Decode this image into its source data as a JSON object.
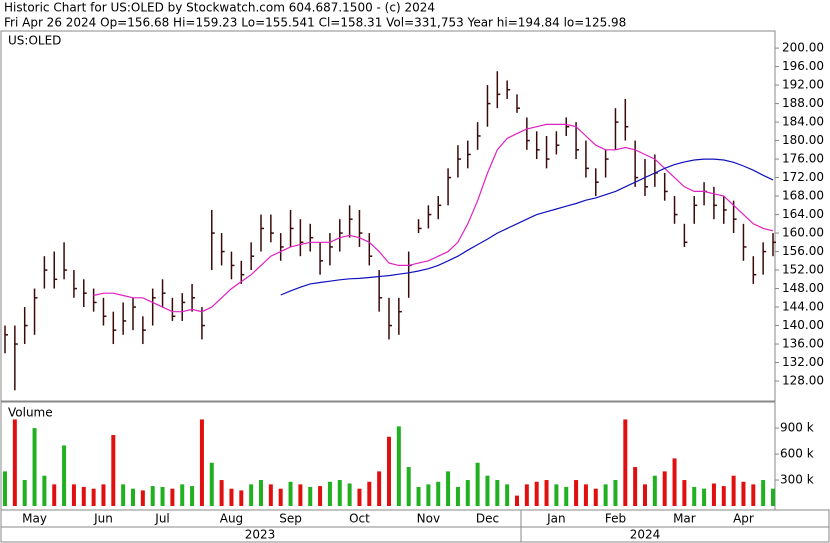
{
  "header": {
    "line1": "Historic Chart for US:OLED by Stockwatch.com 604.687.1500 - (c) 2024",
    "line2": "Fri Apr 26 2024   Op=156.68   Hi=159.23   Lo=155.541   Cl=158.31   Vol=331,753   Year hi=194.84   lo=125.98"
  },
  "chart_data": [
    {
      "type": "ohlc",
      "title": "US:OLED",
      "bar_color": "#3a0a0a",
      "categories": [
        null,
        null,
        null,
        "May",
        null,
        null,
        null,
        null,
        null,
        null,
        "Jun",
        null,
        null,
        null,
        null,
        null,
        "Jul",
        null,
        null,
        null,
        null,
        null,
        null,
        "Aug",
        null,
        null,
        null,
        null,
        null,
        "Sep",
        null,
        null,
        null,
        null,
        null,
        null,
        "Oct",
        null,
        null,
        null,
        null,
        null,
        null,
        "Nov",
        null,
        null,
        null,
        null,
        null,
        "Dec",
        null,
        null,
        null,
        null,
        null,
        null,
        "Jan",
        null,
        null,
        null,
        null,
        null,
        "Feb",
        null,
        null,
        null,
        null,
        null,
        null,
        "Mar",
        null,
        null,
        null,
        null,
        null,
        "Apr",
        null,
        null,
        null
      ],
      "years": [
        "2023",
        "2024"
      ],
      "high": [
        140,
        140,
        144,
        148,
        155,
        156,
        158,
        152,
        150,
        148,
        146,
        143,
        145,
        146,
        142,
        148,
        150,
        146,
        147,
        149,
        144,
        165,
        160,
        156,
        154,
        158,
        164,
        164,
        160,
        165,
        163,
        162,
        158,
        160,
        163,
        166,
        165,
        160,
        152,
        146,
        146,
        156,
        163,
        166,
        168,
        174,
        179,
        180,
        184,
        192,
        195,
        193,
        190,
        185,
        182,
        181,
        182,
        185,
        184,
        180,
        174,
        178,
        187,
        189,
        180,
        176,
        177,
        173,
        168,
        162,
        168,
        171,
        170,
        168,
        167,
        162,
        155,
        158,
        160
      ],
      "low": [
        134,
        126,
        136,
        138,
        148,
        148,
        150,
        146,
        144,
        143,
        140,
        136,
        138,
        139,
        136,
        140,
        144,
        141,
        141,
        143,
        137,
        152,
        153,
        150,
        149,
        152,
        156,
        158,
        154,
        157,
        155,
        156,
        151,
        153,
        156,
        159,
        157,
        153,
        143,
        137,
        138,
        146,
        160,
        161,
        163,
        166,
        172,
        174,
        178,
        183,
        187,
        189,
        186,
        178,
        176,
        174,
        177,
        181,
        176,
        172,
        168,
        172,
        178,
        180,
        170,
        168,
        170,
        167,
        162,
        157,
        162,
        166,
        163,
        162,
        160,
        154,
        149,
        151,
        155
      ],
      "close": [
        138,
        136,
        140,
        146,
        152,
        150,
        152,
        148,
        147,
        145,
        142,
        139,
        141,
        144,
        139,
        146,
        147,
        142,
        145,
        146,
        140,
        160,
        156,
        153,
        151,
        155,
        161,
        160,
        157,
        161,
        158,
        159,
        154,
        157,
        160,
        163,
        160,
        155,
        146,
        140,
        143,
        153,
        161,
        164,
        166,
        172,
        176,
        177,
        181,
        188,
        190,
        191,
        187,
        180,
        178,
        176,
        179,
        183,
        178,
        174,
        171,
        176,
        184,
        183,
        172,
        170,
        173,
        169,
        164,
        158,
        166,
        169,
        166,
        165,
        163,
        157,
        151,
        156,
        158
      ],
      "series": [
        {
          "name": "MA50",
          "color": "#e020c0",
          "values": [
            null,
            null,
            null,
            null,
            null,
            null,
            null,
            null,
            null,
            146.5,
            147,
            147,
            146.5,
            146,
            146,
            145,
            144,
            143,
            143,
            143.5,
            143,
            144,
            146,
            148,
            149.5,
            151,
            153,
            155,
            156,
            157,
            157.5,
            158,
            158,
            158,
            159,
            159.5,
            159,
            158,
            156,
            153.5,
            153,
            153,
            153.5,
            154,
            155,
            156,
            158,
            162,
            167,
            173,
            178,
            180.5,
            181.5,
            182.5,
            183,
            183.5,
            183.5,
            183.5,
            183,
            181,
            179,
            178,
            178,
            178.5,
            178,
            177,
            176,
            174,
            172,
            170,
            169,
            169,
            168.5,
            168,
            166,
            164,
            162,
            161,
            160.5
          ]
        },
        {
          "name": "MA200",
          "color": "#1010c0",
          "values": [
            null,
            null,
            null,
            null,
            null,
            null,
            null,
            null,
            null,
            null,
            null,
            null,
            null,
            null,
            null,
            null,
            null,
            null,
            null,
            null,
            null,
            null,
            null,
            null,
            null,
            null,
            null,
            null,
            146.6,
            147.5,
            148.3,
            149,
            149.3,
            149.6,
            149.9,
            150.1,
            150.2,
            150.4,
            150.6,
            150.8,
            151.1,
            151.4,
            151.8,
            152.3,
            153,
            154,
            155,
            156.3,
            157.5,
            158.7,
            160,
            161,
            162,
            163,
            164,
            164.6,
            165.2,
            165.8,
            166.4,
            167.1,
            167.6,
            168.3,
            169,
            170,
            171,
            172,
            173,
            174,
            174.8,
            175.4,
            175.8,
            176,
            176,
            175.8,
            175.3,
            174.5,
            173.6,
            172.5,
            171.5
          ]
        }
      ],
      "ylim": [
        123.9,
        202.4
      ],
      "yticks": [
        {
          "value": 128,
          "label": "128.00"
        },
        {
          "value": 132,
          "label": "132.00"
        },
        {
          "value": 136,
          "label": "136.00"
        },
        {
          "value": 140,
          "label": "140.00"
        },
        {
          "value": 144,
          "label": "144.00"
        },
        {
          "value": 148,
          "label": "148.00"
        },
        {
          "value": 152,
          "label": "152.00"
        },
        {
          "value": 156,
          "label": "156.00"
        },
        {
          "value": 160,
          "label": "160.00"
        },
        {
          "value": 164,
          "label": "164.00"
        },
        {
          "value": 168,
          "label": "168.00"
        },
        {
          "value": 172,
          "label": "172.00"
        },
        {
          "value": 176,
          "label": "176.00"
        },
        {
          "value": 180,
          "label": "180.00"
        },
        {
          "value": 184,
          "label": "184.00"
        },
        {
          "value": 188,
          "label": "188.00"
        },
        {
          "value": 192,
          "label": "192.00"
        },
        {
          "value": 196,
          "label": "196.00"
        },
        {
          "value": 200,
          "label": "200.00"
        }
      ]
    },
    {
      "type": "volume",
      "title": "Volume",
      "up_color": "#20b020",
      "down_color": "#e01010",
      "values": [
        400000,
        1000000,
        300000,
        900000,
        350000,
        250000,
        700000,
        250000,
        220000,
        200000,
        250000,
        820000,
        250000,
        200000,
        180000,
        230000,
        220000,
        200000,
        250000,
        230000,
        1000000,
        500000,
        300000,
        200000,
        180000,
        250000,
        300000,
        250000,
        200000,
        280000,
        250000,
        220000,
        230000,
        280000,
        300000,
        260000,
        200000,
        280000,
        400000,
        800000,
        920000,
        450000,
        220000,
        250000,
        280000,
        400000,
        220000,
        300000,
        500000,
        350000,
        300000,
        250000,
        120000,
        250000,
        280000,
        300000,
        250000,
        220000,
        300000,
        250000,
        200000,
        250000,
        300000,
        1000000,
        450000,
        250000,
        350000,
        400000,
        550000,
        300000,
        220000,
        200000,
        260000,
        230000,
        350000,
        280000,
        250000,
        300000,
        200000
      ],
      "ylim": [
        0,
        1190000
      ],
      "yticks": [
        {
          "value": 300000,
          "label": "300 k"
        },
        {
          "value": 600000,
          "label": "600 k"
        },
        {
          "value": 900000,
          "label": "900 k"
        }
      ]
    }
  ]
}
